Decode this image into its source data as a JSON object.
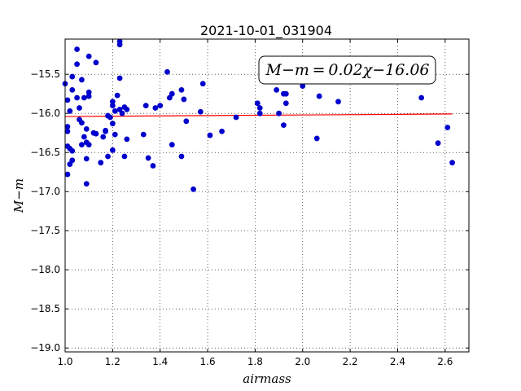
{
  "chart_data": {
    "type": "scatter",
    "title": "2021-10-01_031904",
    "xlabel": "airmass",
    "ylabel": "M−m",
    "xlim": [
      1.0,
      2.7
    ],
    "ylim": [
      -19.05,
      -15.05
    ],
    "xticks": [
      "1.0",
      "1.2",
      "1.4",
      "1.6",
      "1.8",
      "2.0",
      "2.2",
      "2.4",
      "2.6"
    ],
    "yticks": [
      "−15.5",
      "−16.0",
      "−16.5",
      "−17.0",
      "−17.5",
      "−18.0",
      "−18.5",
      "−19.0"
    ],
    "grid": true,
    "annotation": "M−m = 0.02χ−16.06",
    "marker_color": "#0000cc",
    "fit_color": "#ff0000",
    "fit": {
      "slope": 0.02,
      "intercept": -16.06,
      "x_range": [
        1.0,
        2.63
      ]
    },
    "points": [
      [
        1.0,
        -15.62
      ],
      [
        1.01,
        -15.83
      ],
      [
        1.01,
        -16.17
      ],
      [
        1.01,
        -16.23
      ],
      [
        1.01,
        -16.42
      ],
      [
        1.01,
        -16.78
      ],
      [
        1.02,
        -15.97
      ],
      [
        1.02,
        -16.45
      ],
      [
        1.02,
        -16.65
      ],
      [
        1.03,
        -15.53
      ],
      [
        1.03,
        -16.48
      ],
      [
        1.03,
        -16.6
      ],
      [
        1.03,
        -15.7
      ],
      [
        1.05,
        -15.8
      ],
      [
        1.05,
        -15.37
      ],
      [
        1.05,
        -15.18
      ],
      [
        1.06,
        -16.08
      ],
      [
        1.06,
        -15.93
      ],
      [
        1.07,
        -16.12
      ],
      [
        1.07,
        -15.57
      ],
      [
        1.07,
        -16.4
      ],
      [
        1.08,
        -15.8
      ],
      [
        1.08,
        -16.3
      ],
      [
        1.09,
        -16.2
      ],
      [
        1.09,
        -16.37
      ],
      [
        1.09,
        -16.58
      ],
      [
        1.09,
        -16.9
      ],
      [
        1.1,
        -15.73
      ],
      [
        1.1,
        -15.78
      ],
      [
        1.1,
        -15.27
      ],
      [
        1.1,
        -16.4
      ],
      [
        1.12,
        -16.25
      ],
      [
        1.13,
        -16.26
      ],
      [
        1.13,
        -15.35
      ],
      [
        1.15,
        -16.63
      ],
      [
        1.16,
        -16.3
      ],
      [
        1.17,
        -16.22
      ],
      [
        1.17,
        -16.23
      ],
      [
        1.18,
        -16.03
      ],
      [
        1.18,
        -16.55
      ],
      [
        1.19,
        -16.05
      ],
      [
        1.2,
        -15.85
      ],
      [
        1.2,
        -15.9
      ],
      [
        1.2,
        -16.13
      ],
      [
        1.2,
        -16.47
      ],
      [
        1.21,
        -15.97
      ],
      [
        1.21,
        -16.27
      ],
      [
        1.22,
        -15.77
      ],
      [
        1.23,
        -15.95
      ],
      [
        1.23,
        -15.08
      ],
      [
        1.23,
        -15.12
      ],
      [
        1.23,
        -15.55
      ],
      [
        1.24,
        -16.0
      ],
      [
        1.25,
        -15.92
      ],
      [
        1.25,
        -16.55
      ],
      [
        1.26,
        -16.33
      ],
      [
        1.26,
        -15.95
      ],
      [
        1.33,
        -16.27
      ],
      [
        1.34,
        -15.9
      ],
      [
        1.35,
        -16.57
      ],
      [
        1.37,
        -16.67
      ],
      [
        1.38,
        -15.93
      ],
      [
        1.4,
        -15.9
      ],
      [
        1.43,
        -15.47
      ],
      [
        1.44,
        -15.8
      ],
      [
        1.45,
        -15.75
      ],
      [
        1.45,
        -16.4
      ],
      [
        1.49,
        -16.55
      ],
      [
        1.49,
        -15.7
      ],
      [
        1.5,
        -15.82
      ],
      [
        1.51,
        -16.1
      ],
      [
        1.54,
        -16.97
      ],
      [
        1.57,
        -15.98
      ],
      [
        1.58,
        -15.62
      ],
      [
        1.61,
        -16.28
      ],
      [
        1.66,
        -16.23
      ],
      [
        1.72,
        -16.05
      ],
      [
        1.81,
        -15.87
      ],
      [
        1.82,
        -15.93
      ],
      [
        1.82,
        -16.0
      ],
      [
        1.89,
        -15.7
      ],
      [
        1.9,
        -16.0
      ],
      [
        1.92,
        -16.15
      ],
      [
        1.92,
        -15.75
      ],
      [
        1.93,
        -15.75
      ],
      [
        1.93,
        -15.87
      ],
      [
        2.0,
        -15.65
      ],
      [
        2.06,
        -16.32
      ],
      [
        2.07,
        -15.78
      ],
      [
        2.15,
        -15.85
      ],
      [
        2.5,
        -15.8
      ],
      [
        2.57,
        -16.38
      ],
      [
        2.61,
        -16.18
      ],
      [
        2.63,
        -16.63
      ]
    ]
  }
}
